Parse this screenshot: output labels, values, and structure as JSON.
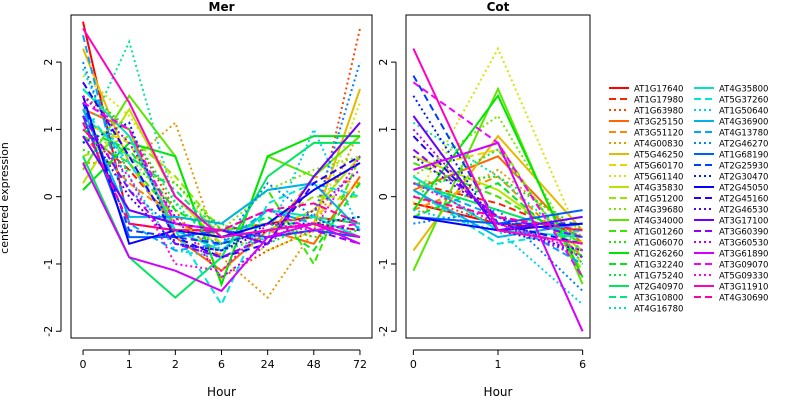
{
  "figure": {
    "ylabel": "centered expression",
    "xlabel": "Hour"
  },
  "chart_data": [
    {
      "type": "line",
      "title": "Mer",
      "xlabel": "Hour",
      "ylabel": "centered expression",
      "x": [
        "0",
        "1",
        "2",
        "6",
        "24",
        "48",
        "72"
      ],
      "ylim": [
        -2.1,
        2.7
      ],
      "yticks": [
        -2,
        -1,
        0,
        1,
        2
      ],
      "grid": false,
      "series": [
        {
          "name": "AT1G17640",
          "values": [
            2.6,
            -0.4,
            -0.5,
            -0.5,
            -0.4,
            -0.3,
            -0.4
          ]
        },
        {
          "name": "AT1G17980",
          "values": [
            1.0,
            0.4,
            -0.4,
            -0.6,
            -0.5,
            -0.4,
            -0.5
          ]
        },
        {
          "name": "AT1G63980",
          "values": [
            1.5,
            1.0,
            -0.2,
            -1.2,
            -0.8,
            -0.5,
            2.5
          ]
        },
        {
          "name": "AT3G25150",
          "values": [
            1.3,
            1.0,
            -0.6,
            -1.1,
            -0.5,
            -0.7,
            0.3
          ]
        },
        {
          "name": "AT3G51120",
          "values": [
            0.9,
            0.2,
            -0.3,
            -0.9,
            -0.6,
            0.3,
            0.2
          ]
        },
        {
          "name": "AT4G00830",
          "values": [
            0.5,
            0.5,
            1.1,
            -0.9,
            -1.5,
            -0.5,
            1.0
          ]
        },
        {
          "name": "AT5G46250",
          "values": [
            2.2,
            0.5,
            -0.5,
            -0.6,
            -0.5,
            -0.4,
            1.6
          ]
        },
        {
          "name": "AT5G60170",
          "values": [
            1.1,
            0.8,
            -0.4,
            -0.7,
            -0.5,
            -0.3,
            0.2
          ]
        },
        {
          "name": "AT5G61140",
          "values": [
            1.8,
            1.2,
            0.2,
            -0.6,
            -0.8,
            -0.5,
            1.4
          ]
        },
        {
          "name": "AT4G35830",
          "values": [
            0.2,
            1.3,
            0.0,
            -0.7,
            -0.5,
            -0.2,
            0.6
          ]
        },
        {
          "name": "AT1G51200",
          "values": [
            0.6,
            0.9,
            0.3,
            -0.5,
            -0.4,
            0.0,
            0.0
          ]
        },
        {
          "name": "AT4G39680",
          "values": [
            1.0,
            0.6,
            -0.2,
            -0.5,
            0.1,
            0.4,
            0.6
          ]
        },
        {
          "name": "AT4G34000",
          "values": [
            0.4,
            1.5,
            0.6,
            -1.3,
            0.6,
            0.3,
            0.9
          ]
        },
        {
          "name": "AT1G01260",
          "values": [
            0.9,
            0.5,
            -0.3,
            -0.4,
            0.1,
            -1.0,
            0.6
          ]
        },
        {
          "name": "AT1G06070",
          "values": [
            0.7,
            0.4,
            0.2,
            -0.5,
            -0.4,
            -0.6,
            -0.5
          ]
        },
        {
          "name": "AT1G26260",
          "values": [
            0.1,
            0.8,
            0.6,
            -1.3,
            0.6,
            0.9,
            0.9
          ]
        },
        {
          "name": "AT1G32240",
          "values": [
            1.0,
            0.7,
            -0.2,
            -0.6,
            -0.3,
            -0.8,
            0.2
          ]
        },
        {
          "name": "AT1G75240",
          "values": [
            1.6,
            1.0,
            -0.1,
            -0.4,
            -0.7,
            -0.4,
            -0.3
          ]
        },
        {
          "name": "AT2G40970",
          "values": [
            0.6,
            -0.9,
            -1.5,
            -0.9,
            0.3,
            0.8,
            0.8
          ]
        },
        {
          "name": "AT3G10800",
          "values": [
            1.2,
            0.6,
            0.1,
            -0.6,
            -0.5,
            -0.3,
            -0.4
          ]
        },
        {
          "name": "AT4G16780",
          "values": [
            0.8,
            2.3,
            -0.1,
            -0.8,
            -0.6,
            -0.5,
            -0.6
          ]
        },
        {
          "name": "AT4G35800",
          "values": [
            1.6,
            0.9,
            -0.5,
            -0.8,
            -0.2,
            -0.3,
            -0.6
          ]
        },
        {
          "name": "AT5G37260",
          "values": [
            1.3,
            0.5,
            -0.5,
            -1.6,
            -0.1,
            0.2,
            0.0
          ]
        },
        {
          "name": "AT1G50640",
          "values": [
            1.9,
            0.3,
            -0.8,
            -0.9,
            -0.6,
            1.0,
            -0.5
          ]
        },
        {
          "name": "AT4G36900",
          "values": [
            1.3,
            -0.3,
            -0.3,
            -0.4,
            0.1,
            0.2,
            -0.5
          ]
        },
        {
          "name": "AT4G13780",
          "values": [
            2.4,
            -0.4,
            -0.8,
            -0.7,
            -0.2,
            -0.4,
            -0.6
          ]
        },
        {
          "name": "AT2G46270",
          "values": [
            2.0,
            0.1,
            -0.5,
            -0.7,
            0.2,
            -0.3,
            2.0
          ]
        },
        {
          "name": "AT1G68190",
          "values": [
            1.2,
            -0.6,
            -0.6,
            -0.5,
            -0.6,
            -0.5,
            -0.6
          ]
        },
        {
          "name": "AT2G25930",
          "values": [
            1.4,
            -0.5,
            -0.6,
            -0.7,
            -0.5,
            -0.4,
            -0.6
          ]
        },
        {
          "name": "AT2G30470",
          "values": [
            0.8,
            1.1,
            -0.7,
            -0.8,
            -0.4,
            -0.4,
            -0.3
          ]
        },
        {
          "name": "AT2G45050",
          "values": [
            1.5,
            -0.7,
            -0.5,
            -0.6,
            -0.4,
            0.1,
            0.5
          ]
        },
        {
          "name": "AT2G45160",
          "values": [
            1.7,
            0.6,
            -0.6,
            -0.9,
            -0.7,
            0.2,
            0.6
          ]
        },
        {
          "name": "AT2G46530",
          "values": [
            1.1,
            0.0,
            -0.7,
            -0.8,
            -0.5,
            -0.4,
            -0.5
          ]
        },
        {
          "name": "AT3G17100",
          "values": [
            0.9,
            -0.2,
            -0.4,
            -0.5,
            -0.7,
            0.3,
            1.1
          ]
        },
        {
          "name": "AT3G60390",
          "values": [
            1.2,
            0.1,
            -0.7,
            -0.9,
            -0.6,
            -0.5,
            -0.7
          ]
        },
        {
          "name": "AT3G60530",
          "values": [
            1.5,
            0.8,
            -0.3,
            -1.2,
            -0.7,
            -0.2,
            0.4
          ]
        },
        {
          "name": "AT3G61890",
          "values": [
            0.5,
            -0.9,
            -1.1,
            -1.4,
            -0.6,
            -0.4,
            -0.7
          ]
        },
        {
          "name": "AT3G09070",
          "values": [
            1.4,
            1.0,
            -0.4,
            -0.5,
            -0.2,
            -0.5,
            -0.4
          ]
        },
        {
          "name": "AT5G09330",
          "values": [
            1.0,
            0.3,
            -1.0,
            -1.1,
            -0.4,
            -0.5,
            0.6
          ]
        },
        {
          "name": "AT3G11910",
          "values": [
            2.5,
            1.4,
            0.0,
            -0.6,
            -0.5,
            -0.4,
            -0.6
          ]
        },
        {
          "name": "AT4G30690",
          "values": [
            1.1,
            -0.4,
            -0.5,
            -0.5,
            -0.2,
            -0.1,
            -0.4
          ]
        }
      ]
    },
    {
      "type": "line",
      "title": "Cot",
      "xlabel": "Hour",
      "ylabel": "",
      "x": [
        "0",
        "1",
        "6"
      ],
      "ylim": [
        -2.1,
        2.7
      ],
      "yticks": [
        -2,
        -1,
        0,
        1,
        2
      ],
      "grid": false,
      "series": [
        {
          "name": "AT1G17640",
          "values": [
            -0.1,
            -0.4,
            -0.5
          ]
        },
        {
          "name": "AT1G17980",
          "values": [
            0.2,
            -0.1,
            -0.6
          ]
        },
        {
          "name": "AT1G63980",
          "values": [
            0.0,
            -0.4,
            -0.8
          ]
        },
        {
          "name": "AT3G25150",
          "values": [
            0.1,
            0.6,
            -0.7
          ]
        },
        {
          "name": "AT3G51120",
          "values": [
            -0.2,
            0.3,
            -0.9
          ]
        },
        {
          "name": "AT4G00830",
          "values": [
            -0.3,
            0.4,
            -0.6
          ]
        },
        {
          "name": "AT5G46250",
          "values": [
            -0.8,
            0.9,
            -0.5
          ]
        },
        {
          "name": "AT5G60170",
          "values": [
            0.4,
            0.7,
            -1.0
          ]
        },
        {
          "name": "AT5G61140",
          "values": [
            -0.1,
            2.2,
            -0.7
          ]
        },
        {
          "name": "AT4G35830",
          "values": [
            0.6,
            0.1,
            -0.8
          ]
        },
        {
          "name": "AT1G51200",
          "values": [
            0.4,
            0.8,
            -1.1
          ]
        },
        {
          "name": "AT4G39680",
          "values": [
            0.3,
            1.2,
            -0.9
          ]
        },
        {
          "name": "AT4G34000",
          "values": [
            -1.1,
            1.6,
            -1.3
          ]
        },
        {
          "name": "AT1G01260",
          "values": [
            0.5,
            0.0,
            -0.7
          ]
        },
        {
          "name": "AT1G06070",
          "values": [
            0.2,
            0.3,
            -0.5
          ]
        },
        {
          "name": "AT1G26260",
          "values": [
            -0.2,
            1.5,
            -1.2
          ]
        },
        {
          "name": "AT1G32240",
          "values": [
            -0.3,
            0.2,
            -0.9
          ]
        },
        {
          "name": "AT1G75240",
          "values": [
            0.0,
            0.7,
            -1.0
          ]
        },
        {
          "name": "AT2G40970",
          "values": [
            0.2,
            -0.2,
            -0.6
          ]
        },
        {
          "name": "AT3G10800",
          "values": [
            0.3,
            -0.5,
            -0.6
          ]
        },
        {
          "name": "AT4G16780",
          "values": [
            1.1,
            0.3,
            -0.8
          ]
        },
        {
          "name": "AT4G35800",
          "values": [
            0.3,
            -0.5,
            -0.6
          ]
        },
        {
          "name": "AT5G37260",
          "values": [
            0.1,
            -0.7,
            -0.5
          ]
        },
        {
          "name": "AT1G50640",
          "values": [
            -0.2,
            -0.5,
            -1.6
          ]
        },
        {
          "name": "AT4G36900",
          "values": [
            0.1,
            -0.6,
            -0.4
          ]
        },
        {
          "name": "AT4G13780",
          "values": [
            0.2,
            -0.3,
            -1.0
          ]
        },
        {
          "name": "AT2G46270",
          "values": [
            -0.4,
            -0.2,
            -1.4
          ]
        },
        {
          "name": "AT1G68190",
          "values": [
            -0.3,
            -0.4,
            -0.2
          ]
        },
        {
          "name": "AT2G25930",
          "values": [
            1.8,
            -0.4,
            -0.4
          ]
        },
        {
          "name": "AT2G30470",
          "values": [
            1.5,
            -0.5,
            -0.8
          ]
        },
        {
          "name": "AT2G45050",
          "values": [
            -0.3,
            -0.5,
            -0.4
          ]
        },
        {
          "name": "AT2G45160",
          "values": [
            0.9,
            -0.4,
            -0.7
          ]
        },
        {
          "name": "AT2G46530",
          "values": [
            0.6,
            -0.3,
            -0.9
          ]
        },
        {
          "name": "AT3G17100",
          "values": [
            1.2,
            -0.5,
            -0.3
          ]
        },
        {
          "name": "AT3G60390",
          "values": [
            0.7,
            -0.3,
            -0.6
          ]
        },
        {
          "name": "AT3G60530",
          "values": [
            1.0,
            -0.4,
            -0.9
          ]
        },
        {
          "name": "AT3G61890",
          "values": [
            0.4,
            0.8,
            -2.0
          ]
        },
        {
          "name": "AT3G09070",
          "values": [
            1.7,
            0.8,
            -1.2
          ]
        },
        {
          "name": "AT5G09330",
          "values": [
            0.2,
            -0.4,
            -0.8
          ]
        },
        {
          "name": "AT3G11910",
          "values": [
            2.2,
            -0.5,
            -0.7
          ]
        },
        {
          "name": "AT4G30690",
          "values": [
            0.0,
            -0.3,
            -0.5
          ]
        }
      ]
    }
  ]
}
